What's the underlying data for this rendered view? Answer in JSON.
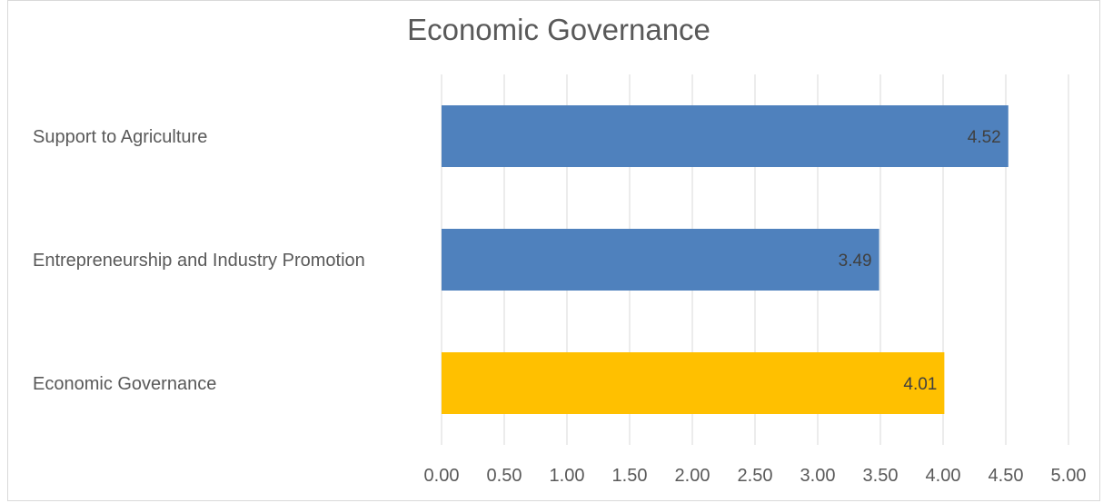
{
  "chart_data": {
    "type": "bar",
    "orientation": "horizontal",
    "title": "Economic Governance",
    "categories": [
      "Support to Agriculture",
      "Entrepreneurship and Industry Promotion",
      "Economic Governance"
    ],
    "values": [
      4.52,
      3.49,
      4.01
    ],
    "data_labels": [
      "4.52",
      "3.49",
      "4.01"
    ],
    "bar_colors": [
      "#4f81bd",
      "#4f81bd",
      "#ffc000"
    ],
    "xlim": [
      0,
      5
    ],
    "xticks": [
      "0.00",
      "0.50",
      "1.00",
      "1.50",
      "2.00",
      "2.50",
      "3.00",
      "3.50",
      "4.00",
      "4.50",
      "5.00"
    ],
    "grid": true,
    "legend": "none"
  }
}
